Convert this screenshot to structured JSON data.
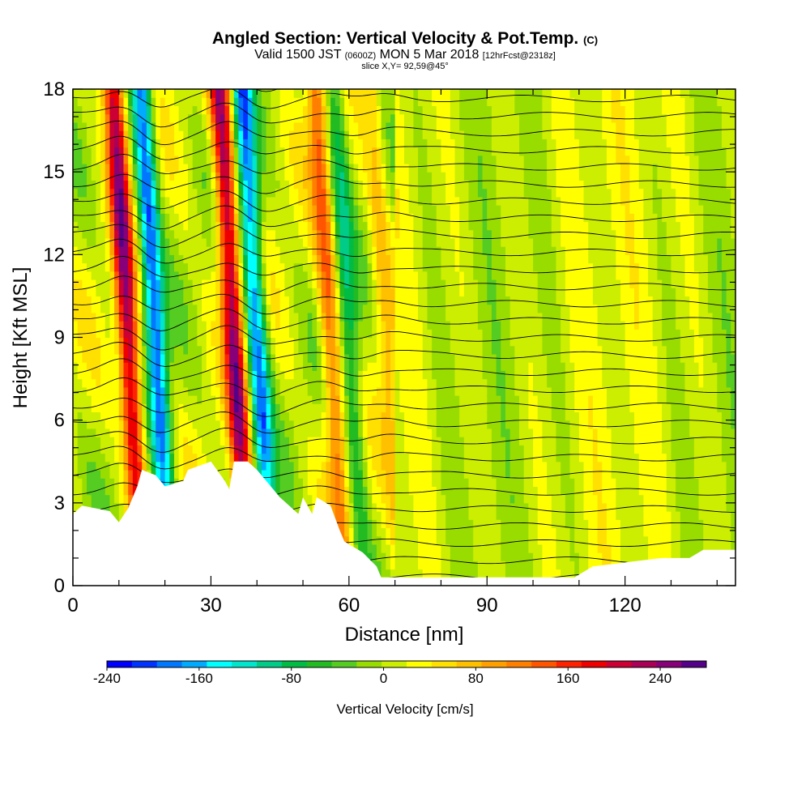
{
  "title": {
    "main": "Angled Section: Vertical Velocity & Pot.Temp.",
    "main_unit": "(C)",
    "valid_main": "Valid 1500 JST",
    "valid_utc": "(0600Z)",
    "valid_date": "MON 5 Mar 2018",
    "forecast": "[12hrFcst@2318z]",
    "slice": "slice X,Y= 92,59@45°"
  },
  "chart_data": {
    "type": "heatmap",
    "xlabel": "Distance [nm]",
    "ylabel": "Height [Kft MSL]",
    "xlim": [
      0,
      144
    ],
    "ylim": [
      0,
      18
    ],
    "x_ticks": [
      0,
      30,
      60,
      90,
      120
    ],
    "y_ticks": [
      0,
      3,
      6,
      9,
      12,
      15,
      18
    ],
    "colorbar": {
      "label": "Vertical Velocity [cm/s]",
      "range": [
        -240,
        280
      ],
      "ticks": [
        -240,
        -160,
        -80,
        0,
        80,
        160,
        240
      ],
      "colors": [
        "#0000ff",
        "#0033ff",
        "#0077ff",
        "#00aaff",
        "#00ffff",
        "#00e5cc",
        "#00cc88",
        "#00bb44",
        "#22bb22",
        "#55cc22",
        "#99dd00",
        "#ccee00",
        "#ffff00",
        "#ffe000",
        "#ffc000",
        "#ffa000",
        "#ff7f00",
        "#ff5500",
        "#ff2200",
        "#ee0000",
        "#cc0033",
        "#aa0055",
        "#880077",
        "#550088"
      ]
    },
    "updraft_bands": [
      {
        "x": 12,
        "strength": 220
      },
      {
        "x": 18,
        "strength": -200
      },
      {
        "x": 35,
        "strength": 220
      },
      {
        "x": 40,
        "strength": -190
      },
      {
        "x": 56,
        "strength": 120
      },
      {
        "x": 60,
        "strength": -90
      },
      {
        "x": 68,
        "strength": 60
      }
    ],
    "terrain": [
      {
        "x": 0,
        "y": 2.6
      },
      {
        "x": 2,
        "y": 2.9
      },
      {
        "x": 8,
        "y": 2.7
      },
      {
        "x": 10,
        "y": 2.3
      },
      {
        "x": 12,
        "y": 2.8
      },
      {
        "x": 14,
        "y": 3.6
      },
      {
        "x": 15,
        "y": 4.2
      },
      {
        "x": 18,
        "y": 4.0
      },
      {
        "x": 20,
        "y": 3.6
      },
      {
        "x": 24,
        "y": 3.8
      },
      {
        "x": 25,
        "y": 4.2
      },
      {
        "x": 30,
        "y": 4.5
      },
      {
        "x": 33,
        "y": 3.8
      },
      {
        "x": 34,
        "y": 3.5
      },
      {
        "x": 35,
        "y": 4.5
      },
      {
        "x": 38,
        "y": 4.5
      },
      {
        "x": 40,
        "y": 4.2
      },
      {
        "x": 42,
        "y": 3.8
      },
      {
        "x": 45,
        "y": 3.2
      },
      {
        "x": 47,
        "y": 2.9
      },
      {
        "x": 49,
        "y": 2.6
      },
      {
        "x": 50,
        "y": 3.2
      },
      {
        "x": 52,
        "y": 2.6
      },
      {
        "x": 53,
        "y": 3.2
      },
      {
        "x": 56,
        "y": 2.9
      },
      {
        "x": 58,
        "y": 2.0
      },
      {
        "x": 59,
        "y": 1.6
      },
      {
        "x": 63,
        "y": 1.2
      },
      {
        "x": 66,
        "y": 0.7
      },
      {
        "x": 67,
        "y": 0.3
      },
      {
        "x": 95,
        "y": 0.3
      },
      {
        "x": 109,
        "y": 0.3
      },
      {
        "x": 113,
        "y": 0.7
      },
      {
        "x": 128,
        "y": 1.0
      },
      {
        "x": 134,
        "y": 1.0
      },
      {
        "x": 137,
        "y": 1.3
      },
      {
        "x": 144,
        "y": 1.3
      }
    ],
    "isentropes": {
      "count": 30,
      "y_start": 0.3,
      "y_spacing": 0.62
    }
  }
}
